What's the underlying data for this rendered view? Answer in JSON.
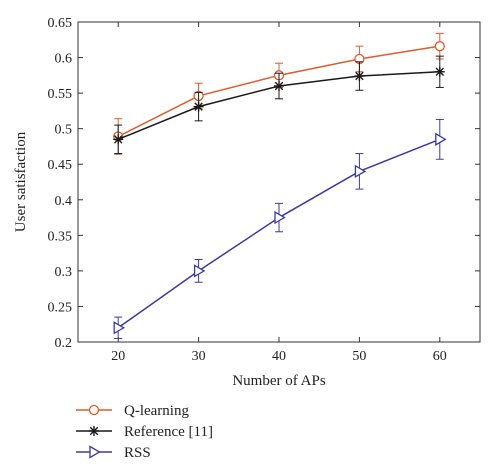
{
  "chart_data": {
    "type": "line",
    "xlabel": "Number of APs",
    "ylabel": "User satisfaction",
    "x": [
      20,
      30,
      40,
      50,
      60
    ],
    "x_ticks": [
      "20",
      "30",
      "40",
      "50",
      "60"
    ],
    "xlim": [
      15,
      65
    ],
    "ylim": [
      0.2,
      0.65
    ],
    "y_ticks": [
      "0.2",
      "0.25",
      "0.3",
      "0.35",
      "0.4",
      "0.45",
      "0.5",
      "0.55",
      "0.6",
      "0.65"
    ],
    "grid": false,
    "legend_position": "below plot, left",
    "series": [
      {
        "name": "Q-learning",
        "marker": "circle",
        "color": "#e05a2b",
        "values": [
          0.489,
          0.546,
          0.575,
          0.598,
          0.616
        ],
        "error": [
          0.025,
          0.018,
          0.017,
          0.018,
          0.018
        ]
      },
      {
        "name": "Reference [11]",
        "marker": "asterisk",
        "color": "#1a1a1a",
        "values": [
          0.485,
          0.531,
          0.56,
          0.574,
          0.58
        ],
        "error": [
          0.02,
          0.02,
          0.018,
          0.02,
          0.022
        ]
      },
      {
        "name": "RSS",
        "marker": "triangle-right",
        "color": "#3b3aa0",
        "values": [
          0.22,
          0.3,
          0.375,
          0.44,
          0.485
        ],
        "error": [
          0.015,
          0.016,
          0.02,
          0.025,
          0.028
        ]
      }
    ]
  }
}
